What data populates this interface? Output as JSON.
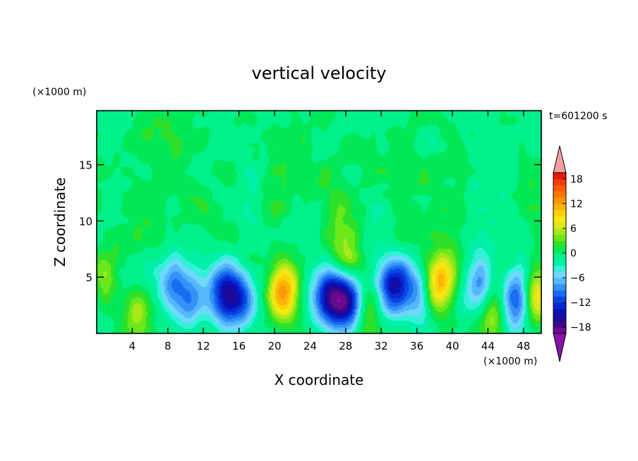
{
  "chart_data": {
    "type": "heatmap",
    "title": "vertical velocity",
    "xlabel": "X coordinate",
    "ylabel": "Z coordinate",
    "x_unit": "(×1000 m)",
    "y_unit": "(×1000 m)",
    "time_label": "t=601200 s",
    "xlim": [
      0,
      50
    ],
    "ylim": [
      0,
      19.8
    ],
    "x_ticks": [
      4,
      8,
      12,
      16,
      20,
      24,
      28,
      32,
      36,
      40,
      44,
      48
    ],
    "y_ticks": [
      5,
      10,
      15
    ],
    "colorbar": {
      "levels": [
        -21,
        -19.5,
        -18,
        -16.5,
        -15,
        -13.5,
        -12,
        -10.5,
        -9,
        -7.5,
        -6,
        -4.5,
        -3,
        -1.5,
        0,
        1.5,
        3,
        4.5,
        6,
        7.5,
        9,
        10.5,
        12,
        13.5,
        15,
        16.5,
        18,
        19.5
      ],
      "tick_labels": [
        "18",
        "12",
        "6",
        "0",
        "−6",
        "−12",
        "−18"
      ],
      "tick_values": [
        18,
        12,
        6,
        0,
        -6,
        -12,
        -18
      ],
      "colors": [
        "#ffffff",
        "#6a0a8e",
        "#3c0a8a",
        "#1a0a9a",
        "#0a10b5",
        "#0a28cf",
        "#0a45e2",
        "#1a6cf0",
        "#3592f6",
        "#55b8fa",
        "#6fd8fc",
        "#35f0d8",
        "#00f0a8",
        "#00f08a",
        "#00e858",
        "#2ee02a",
        "#6ae81a",
        "#a8e81a",
        "#d8e81a",
        "#f8e80e",
        "#fad20a",
        "#fab40a",
        "#fa960a",
        "#fa780a",
        "#f85a0a",
        "#f53a0a",
        "#e51a0a",
        "#d80a0a",
        "#f4a0a0"
      ],
      "under_color": "#8a10a8",
      "over_color": "#f4a0a0"
    },
    "features": [
      {
        "x": 0.8,
        "z": 4.8,
        "w": 6
      },
      {
        "x": 4.5,
        "z": 1.8,
        "w": 6
      },
      {
        "x": 8.5,
        "z": 4.5,
        "w": -6
      },
      {
        "x": 10.5,
        "z": 2.8,
        "w": -6
      },
      {
        "x": 14.5,
        "z": 3.5,
        "w": -13
      },
      {
        "x": 16.3,
        "z": 3.0,
        "w": -6
      },
      {
        "x": 21.0,
        "z": 3.8,
        "w": 15
      },
      {
        "x": 26.2,
        "z": 3.4,
        "w": -12
      },
      {
        "x": 28.2,
        "z": 2.8,
        "w": -12
      },
      {
        "x": 28.2,
        "z": 6.8,
        "w": 6
      },
      {
        "x": 30.3,
        "z": 2.3,
        "w": 6
      },
      {
        "x": 33.3,
        "z": 4.2,
        "w": -13
      },
      {
        "x": 36.1,
        "z": 3.5,
        "w": -6
      },
      {
        "x": 38.5,
        "z": 4.4,
        "w": 13
      },
      {
        "x": 43.0,
        "z": 5.0,
        "w": -6
      },
      {
        "x": 44.5,
        "z": 1.8,
        "w": 6
      },
      {
        "x": 47.0,
        "z": 3.0,
        "w": -10
      },
      {
        "x": 49.5,
        "z": 3.5,
        "w": 10
      },
      {
        "x": 27.0,
        "z": 10.0,
        "w": 3
      },
      {
        "x": 20.0,
        "z": 14.0,
        "w": 1
      },
      {
        "x": 40.0,
        "z": 17.0,
        "w": 1
      }
    ]
  }
}
